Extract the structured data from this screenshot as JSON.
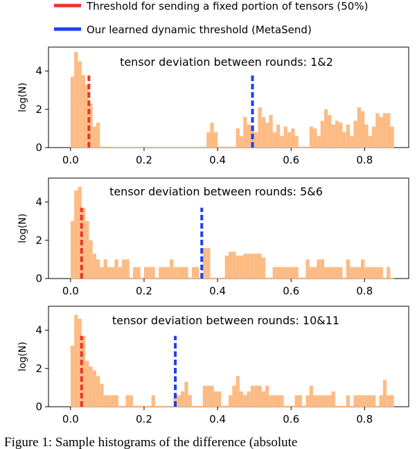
{
  "legend": {
    "items": [
      {
        "label": "Threshold for sending a fixed portion of tensors (50%)",
        "color": "#e8372a"
      },
      {
        "label": "Our learned dynamic threshold (MetaSend)",
        "color": "#1f3ff0"
      }
    ]
  },
  "caption": "Figure 1: Sample histograms of the difference (absolute",
  "colors": {
    "bars": "#fdbb84",
    "fixed_threshold": "#e8372a",
    "dynamic_threshold": "#1f3ff0"
  },
  "chart_data": [
    {
      "type": "bar",
      "title": "tensor deviation between rounds: 1&2",
      "xlabel": "",
      "ylabel": "log(N)",
      "xlim": [
        -0.06,
        0.92
      ],
      "ylim": [
        0,
        5.25
      ],
      "xticks": [
        "0.0",
        "0.2",
        "0.4",
        "0.6",
        "0.8"
      ],
      "yticks": [
        "0",
        "2",
        "4"
      ],
      "bin_width": 0.01,
      "bins": [
        [
          0.0,
          3.7
        ],
        [
          0.01,
          5.0
        ],
        [
          0.02,
          4.5
        ],
        [
          0.03,
          3.8
        ],
        [
          0.04,
          3.3
        ],
        [
          0.05,
          2.3
        ],
        [
          0.06,
          1.1
        ],
        [
          0.07,
          1.3
        ],
        [
          0.37,
          0.8
        ],
        [
          0.38,
          1.3
        ],
        [
          0.39,
          0.8
        ],
        [
          0.45,
          1.0
        ],
        [
          0.46,
          0.6
        ],
        [
          0.47,
          1.6
        ],
        [
          0.48,
          1.2
        ],
        [
          0.49,
          1.1
        ],
        [
          0.5,
          0.8
        ],
        [
          0.51,
          2.1
        ],
        [
          0.52,
          1.6
        ],
        [
          0.53,
          1.3
        ],
        [
          0.54,
          1.7
        ],
        [
          0.55,
          0.8
        ],
        [
          0.56,
          1.2
        ],
        [
          0.57,
          0.6
        ],
        [
          0.58,
          1.1
        ],
        [
          0.59,
          0.8
        ],
        [
          0.6,
          1.0
        ],
        [
          0.61,
          0.6
        ],
        [
          0.65,
          1.1
        ],
        [
          0.66,
          1.0
        ],
        [
          0.67,
          0.6
        ],
        [
          0.68,
          1.4
        ],
        [
          0.69,
          2.0
        ],
        [
          0.7,
          1.7
        ],
        [
          0.71,
          1.2
        ],
        [
          0.72,
          1.4
        ],
        [
          0.73,
          1.3
        ],
        [
          0.74,
          0.8
        ],
        [
          0.75,
          1.2
        ],
        [
          0.76,
          0.6
        ],
        [
          0.77,
          1.4
        ],
        [
          0.78,
          2.1
        ],
        [
          0.79,
          1.9
        ],
        [
          0.8,
          1.2
        ],
        [
          0.81,
          0.6
        ],
        [
          0.82,
          1.1
        ],
        [
          0.83,
          1.8
        ],
        [
          0.84,
          1.6
        ],
        [
          0.85,
          1.8
        ],
        [
          0.86,
          1.8
        ],
        [
          0.87,
          1.1
        ]
      ],
      "fixed_threshold": 0.05,
      "dynamic_threshold": 0.495,
      "threshold_heights": [
        3.9,
        3.9
      ]
    },
    {
      "type": "bar",
      "title": "tensor deviation between rounds: 5&6",
      "xlabel": "",
      "ylabel": "log(N)",
      "xlim": [
        -0.06,
        0.92
      ],
      "ylim": [
        0,
        5.25
      ],
      "xticks": [
        "0.0",
        "0.2",
        "0.4",
        "0.6",
        "0.8"
      ],
      "yticks": [
        "0",
        "2",
        "4"
      ],
      "bin_width": 0.01,
      "bins": [
        [
          0.0,
          3.0
        ],
        [
          0.01,
          4.6
        ],
        [
          0.02,
          4.8
        ],
        [
          0.03,
          3.7
        ],
        [
          0.04,
          3.0
        ],
        [
          0.05,
          2.0
        ],
        [
          0.06,
          1.3
        ],
        [
          0.07,
          1.0
        ],
        [
          0.08,
          0.6
        ],
        [
          0.09,
          1.0
        ],
        [
          0.1,
          0.6
        ],
        [
          0.11,
          0.6
        ],
        [
          0.12,
          1.0
        ],
        [
          0.13,
          0.6
        ],
        [
          0.14,
          1.0
        ],
        [
          0.15,
          1.0
        ],
        [
          0.17,
          0.6
        ],
        [
          0.18,
          0.6
        ],
        [
          0.2,
          0.6
        ],
        [
          0.21,
          0.6
        ],
        [
          0.22,
          0.6
        ],
        [
          0.24,
          0.6
        ],
        [
          0.25,
          0.6
        ],
        [
          0.26,
          0.6
        ],
        [
          0.27,
          1.0
        ],
        [
          0.28,
          0.6
        ],
        [
          0.29,
          0.6
        ],
        [
          0.3,
          0.6
        ],
        [
          0.31,
          0.6
        ],
        [
          0.33,
          0.6
        ],
        [
          0.34,
          0.6
        ],
        [
          0.36,
          1.6
        ],
        [
          0.37,
          1.6
        ],
        [
          0.42,
          1.2
        ],
        [
          0.43,
          1.4
        ],
        [
          0.44,
          1.4
        ],
        [
          0.45,
          1.2
        ],
        [
          0.46,
          1.2
        ],
        [
          0.47,
          1.3
        ],
        [
          0.48,
          1.3
        ],
        [
          0.49,
          1.3
        ],
        [
          0.5,
          1.3
        ],
        [
          0.51,
          1.3
        ],
        [
          0.52,
          1.1
        ],
        [
          0.55,
          0.6
        ],
        [
          0.56,
          0.6
        ],
        [
          0.57,
          0.6
        ],
        [
          0.58,
          0.6
        ],
        [
          0.59,
          0.6
        ],
        [
          0.6,
          0.6
        ],
        [
          0.61,
          0.6
        ],
        [
          0.64,
          1.0
        ],
        [
          0.65,
          0.6
        ],
        [
          0.66,
          0.6
        ],
        [
          0.67,
          1.0
        ],
        [
          0.68,
          1.0
        ],
        [
          0.69,
          0.6
        ],
        [
          0.7,
          0.6
        ],
        [
          0.71,
          0.6
        ],
        [
          0.72,
          0.6
        ],
        [
          0.73,
          0.6
        ],
        [
          0.75,
          1.0
        ],
        [
          0.76,
          0.6
        ],
        [
          0.77,
          0.6
        ],
        [
          0.78,
          0.6
        ],
        [
          0.79,
          1.0
        ],
        [
          0.8,
          0.6
        ],
        [
          0.81,
          0.6
        ],
        [
          0.82,
          0.6
        ],
        [
          0.83,
          0.6
        ],
        [
          0.84,
          0.6
        ],
        [
          0.86,
          0.6
        ]
      ],
      "fixed_threshold": 0.03,
      "dynamic_threshold": 0.357,
      "threshold_heights": [
        3.7,
        3.7
      ]
    },
    {
      "type": "bar",
      "title": "tensor deviation between rounds: 10&11",
      "xlabel": "",
      "ylabel": "log(N)",
      "xlim": [
        -0.06,
        0.92
      ],
      "ylim": [
        0,
        5.25
      ],
      "xticks": [
        "0.0",
        "0.2",
        "0.4",
        "0.6",
        "0.8"
      ],
      "yticks": [
        "0",
        "2",
        "4"
      ],
      "bin_width": 0.01,
      "bins": [
        [
          0.0,
          3.2
        ],
        [
          0.01,
          4.8
        ],
        [
          0.02,
          4.6
        ],
        [
          0.03,
          3.7
        ],
        [
          0.04,
          2.4
        ],
        [
          0.05,
          2.1
        ],
        [
          0.06,
          1.9
        ],
        [
          0.07,
          1.6
        ],
        [
          0.08,
          1.2
        ],
        [
          0.09,
          0.6
        ],
        [
          0.1,
          0.6
        ],
        [
          0.11,
          0.6
        ],
        [
          0.12,
          0.6
        ],
        [
          0.15,
          0.6
        ],
        [
          0.16,
          0.6
        ],
        [
          0.22,
          0.6
        ],
        [
          0.28,
          0.6
        ],
        [
          0.29,
          0.6
        ],
        [
          0.3,
          0.8
        ],
        [
          0.31,
          1.3
        ],
        [
          0.32,
          0.6
        ],
        [
          0.36,
          1.1
        ],
        [
          0.37,
          1.1
        ],
        [
          0.38,
          1.1
        ],
        [
          0.39,
          0.8
        ],
        [
          0.4,
          0.8
        ],
        [
          0.43,
          0.6
        ],
        [
          0.44,
          1.1
        ],
        [
          0.45,
          1.6
        ],
        [
          0.46,
          0.8
        ],
        [
          0.47,
          0.6
        ],
        [
          0.48,
          0.8
        ],
        [
          0.49,
          1.1
        ],
        [
          0.5,
          1.1
        ],
        [
          0.51,
          1.1
        ],
        [
          0.52,
          0.8
        ],
        [
          0.53,
          1.1
        ],
        [
          0.54,
          0.6
        ],
        [
          0.55,
          0.6
        ],
        [
          0.56,
          0.6
        ],
        [
          0.57,
          0.6
        ],
        [
          0.61,
          0.6
        ],
        [
          0.62,
          0.6
        ],
        [
          0.64,
          0.6
        ],
        [
          0.65,
          1.1
        ],
        [
          0.66,
          0.6
        ],
        [
          0.67,
          0.6
        ],
        [
          0.68,
          0.6
        ],
        [
          0.69,
          0.6
        ],
        [
          0.7,
          0.6
        ],
        [
          0.71,
          0.8
        ],
        [
          0.75,
          0.6
        ],
        [
          0.77,
          0.6
        ],
        [
          0.78,
          0.6
        ],
        [
          0.79,
          0.6
        ],
        [
          0.8,
          0.6
        ],
        [
          0.81,
          0.6
        ],
        [
          0.82,
          0.6
        ],
        [
          0.84,
          0.6
        ],
        [
          0.85,
          1.4
        ],
        [
          0.86,
          0.6
        ],
        [
          0.87,
          0.6
        ]
      ],
      "fixed_threshold": 0.03,
      "dynamic_threshold": 0.285,
      "threshold_heights": [
        3.7,
        3.7
      ]
    }
  ]
}
